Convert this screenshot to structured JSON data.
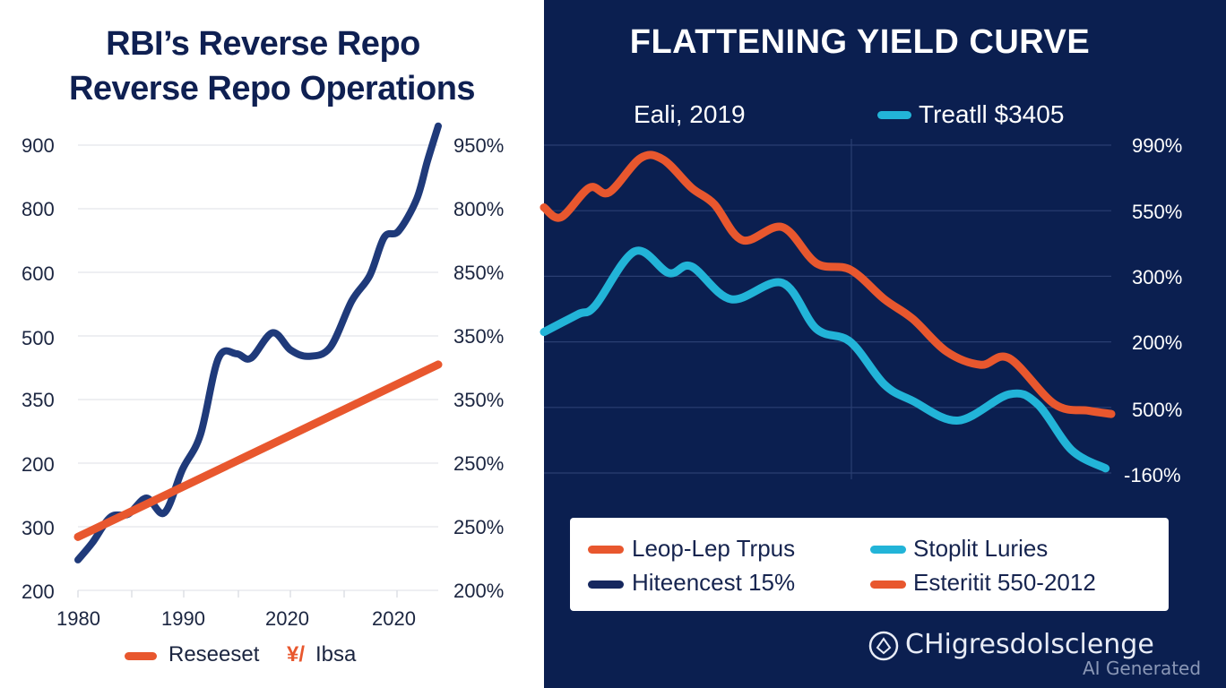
{
  "chart_data": [
    {
      "type": "line",
      "title": "RBI’s Reverse Repo Reverse Repo Operations",
      "title_lines": [
        "RBI’s Reverse Repo",
        "Reverse Repo Operations"
      ],
      "xlabel": "",
      "ylabel": "",
      "x_tick_labels": [
        "1980",
        "1990",
        "2020",
        "2020"
      ],
      "y_left_tick_labels": [
        "900",
        "800",
        "600",
        "500",
        "350",
        "200",
        "300",
        "200"
      ],
      "y_right_tick_labels": [
        "950%",
        "800%",
        "850%",
        "350%",
        "350%",
        "250%",
        "250%",
        "200%"
      ],
      "grid": true,
      "legend": {
        "position": "bottom",
        "entries": [
          {
            "label": "Reseeset",
            "color": "#e8572e"
          },
          {
            "label": "¥ Ibsa",
            "color": "#e8572e"
          }
        ]
      },
      "x_domain": [
        0,
        1
      ],
      "y_domain_rows": [
        0,
        7
      ],
      "series": [
        {
          "name": "Reverse repo (navy)",
          "color": "#1f3a7a",
          "points": [
            [
              0.0,
              0.48
            ],
            [
              0.04,
              0.75
            ],
            [
              0.09,
              1.15
            ],
            [
              0.14,
              1.2
            ],
            [
              0.19,
              1.45
            ],
            [
              0.24,
              1.22
            ],
            [
              0.29,
              1.9
            ],
            [
              0.34,
              2.45
            ],
            [
              0.39,
              3.65
            ],
            [
              0.44,
              3.72
            ],
            [
              0.48,
              3.65
            ],
            [
              0.54,
              4.05
            ],
            [
              0.59,
              3.78
            ],
            [
              0.64,
              3.68
            ],
            [
              0.7,
              3.82
            ],
            [
              0.76,
              4.55
            ],
            [
              0.81,
              4.95
            ],
            [
              0.85,
              5.55
            ],
            [
              0.89,
              5.65
            ],
            [
              0.94,
              6.15
            ],
            [
              0.97,
              6.75
            ],
            [
              1.0,
              7.3
            ]
          ]
        },
        {
          "name": "Trend (orange)",
          "color": "#e8572e",
          "points": [
            [
              0.0,
              0.84
            ],
            [
              1.0,
              3.55
            ]
          ]
        }
      ]
    },
    {
      "type": "line",
      "title": "FLATTENING YIELD CURVE",
      "subtitle_left": "Eali, 2019",
      "subtitle_legend": {
        "label": "Treatll $3405",
        "color": "#22b4d8"
      },
      "y_right_tick_labels": [
        "990%",
        "550%",
        "300%",
        "200%",
        "500%",
        "-160%"
      ],
      "grid": true,
      "legend": {
        "position": "bottom",
        "entries": [
          {
            "label": "Leop-Lep Trpus",
            "color": "#e8572e"
          },
          {
            "label": "Stoplit Luries",
            "color": "#22b4d8"
          },
          {
            "label": "Hiteencest 15%",
            "color": "#16275e"
          },
          {
            "label": "Esteritit 550-2012",
            "color": "#e8572e"
          }
        ]
      },
      "x_domain": [
        0,
        1
      ],
      "y_domain_rows": [
        0,
        5
      ],
      "series": [
        {
          "name": "Long-term yield (orange)",
          "color": "#e8572e",
          "points": [
            [
              0.0,
              4.05
            ],
            [
              0.03,
              3.9
            ],
            [
              0.08,
              4.35
            ],
            [
              0.115,
              4.28
            ],
            [
              0.17,
              4.8
            ],
            [
              0.21,
              4.78
            ],
            [
              0.26,
              4.35
            ],
            [
              0.3,
              4.1
            ],
            [
              0.35,
              3.55
            ],
            [
              0.42,
              3.75
            ],
            [
              0.48,
              3.2
            ],
            [
              0.54,
              3.1
            ],
            [
              0.6,
              2.65
            ],
            [
              0.65,
              2.35
            ],
            [
              0.71,
              1.85
            ],
            [
              0.77,
              1.65
            ],
            [
              0.82,
              1.75
            ],
            [
              0.9,
              1.05
            ],
            [
              0.96,
              0.95
            ],
            [
              1.0,
              0.9
            ]
          ]
        },
        {
          "name": "Short-term yield (blue)",
          "color": "#22b4d8",
          "points": [
            [
              0.0,
              2.15
            ],
            [
              0.06,
              2.42
            ],
            [
              0.09,
              2.55
            ],
            [
              0.16,
              3.38
            ],
            [
              0.22,
              3.05
            ],
            [
              0.26,
              3.15
            ],
            [
              0.33,
              2.65
            ],
            [
              0.42,
              2.9
            ],
            [
              0.48,
              2.2
            ],
            [
              0.54,
              2.0
            ],
            [
              0.6,
              1.35
            ],
            [
              0.65,
              1.1
            ],
            [
              0.73,
              0.8
            ],
            [
              0.82,
              1.2
            ],
            [
              0.87,
              1.05
            ],
            [
              0.93,
              0.35
            ],
            [
              0.99,
              0.07
            ]
          ]
        }
      ]
    }
  ],
  "left_chart": {
    "title_line1": "RBI’s Reverse Repo",
    "title_line2": "Reverse Repo Operations",
    "y_left": [
      "900",
      "800",
      "600",
      "500",
      "350",
      "200",
      "300",
      "200"
    ],
    "y_right": [
      "950%",
      "800%",
      "850%",
      "350%",
      "350%",
      "250%",
      "250%",
      "200%"
    ],
    "x_ticks": [
      "1980",
      "1990",
      "2020",
      "2020"
    ],
    "legend_label_1": "Reseeset",
    "legend_glyph": "¥/",
    "legend_label_2": "Ibsa"
  },
  "right_chart": {
    "title": "FLATTENING YIELD CURVE",
    "subtitle": "Eali, 2019",
    "top_legend": "Treatll $3405",
    "y_right": [
      "990%",
      "550%",
      "300%",
      "200%",
      "500%",
      "-160%"
    ],
    "legend": [
      "Leop-Lep Trpus",
      "Stoplit Luries",
      "Hiteencest 15%",
      "Esteritit 550-2012"
    ]
  },
  "footer": {
    "brand": "CHigresdolsclenge",
    "watermark": "AI Generated"
  },
  "colors": {
    "navy": "#1f3a7a",
    "orange": "#e8572e",
    "cyan": "#22b4d8",
    "panel_dark": "#0b1f50",
    "title_text": "#0f2052"
  }
}
